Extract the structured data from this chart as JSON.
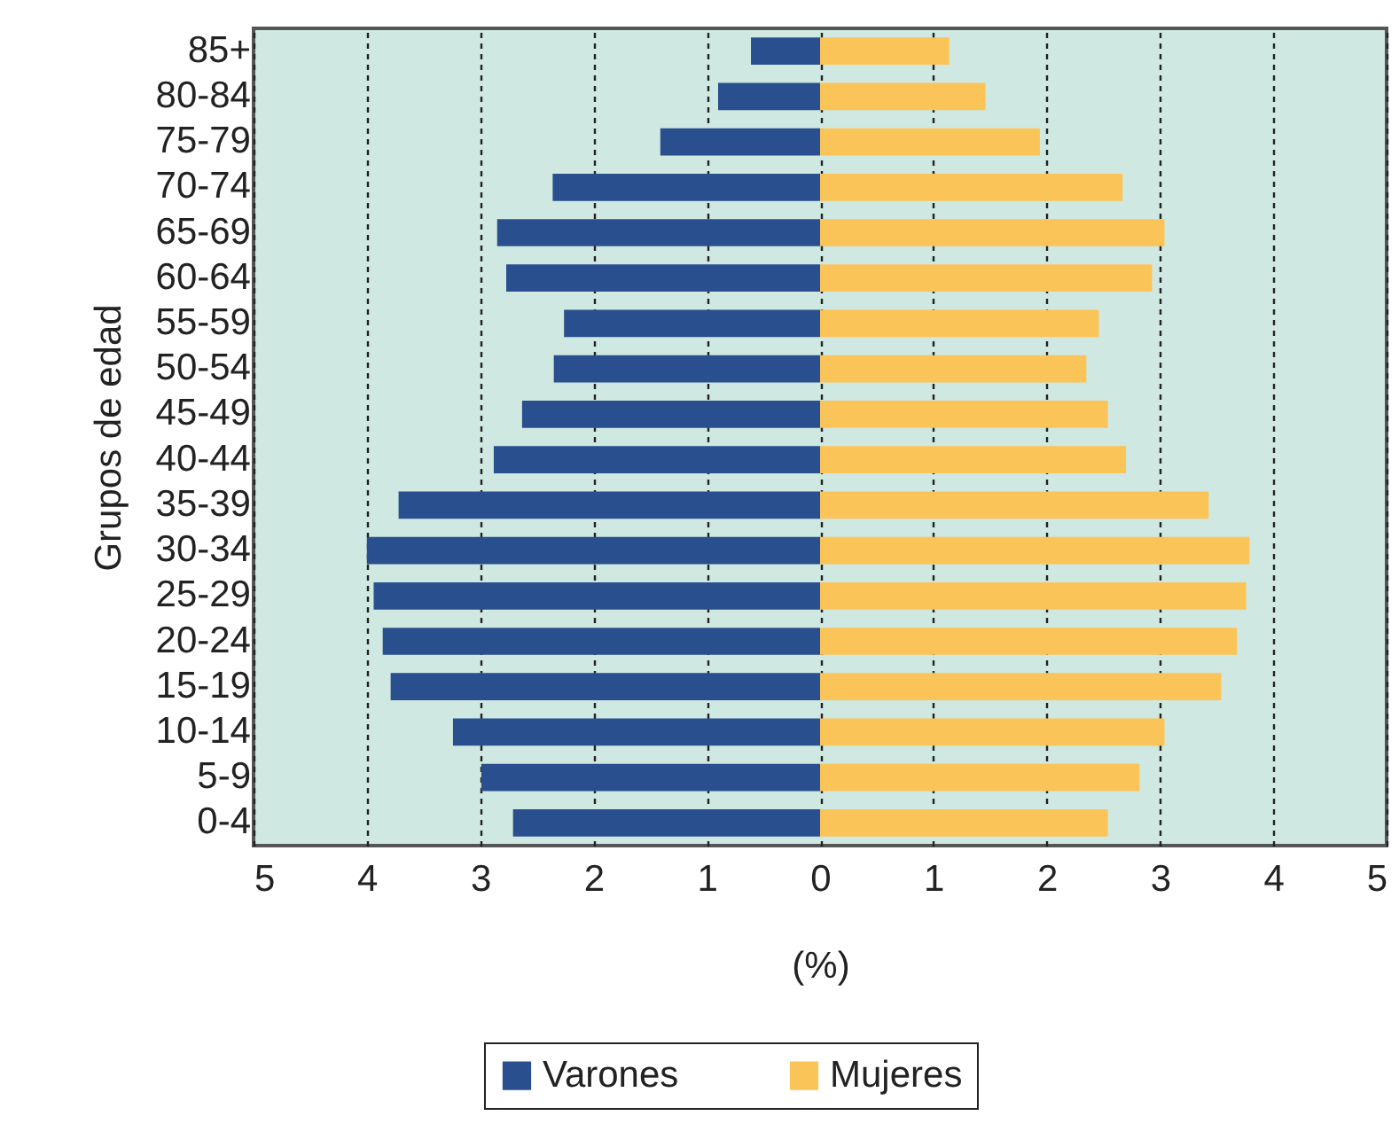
{
  "chart_data": {
    "type": "bar",
    "orientation": "horizontal",
    "ylabel": "Grupos de edad",
    "xlabel": "(%)",
    "categories": [
      "85+",
      "80-84",
      "75-79",
      "70-74",
      "65-69",
      "60-64",
      "55-59",
      "50-54",
      "45-49",
      "40-44",
      "35-39",
      "30-34",
      "25-29",
      "20-24",
      "15-19",
      "10-14",
      "5-9",
      "0-4"
    ],
    "series": [
      {
        "name": "Varones",
        "color": "#2a4f8f",
        "values": [
          -0.61,
          -0.9,
          -1.41,
          -2.36,
          -2.85,
          -2.77,
          -2.26,
          -2.35,
          -2.63,
          -2.88,
          -3.72,
          -4.0,
          -3.94,
          -3.86,
          -3.79,
          -3.24,
          -2.99,
          -2.71
        ]
      },
      {
        "name": "Mujeres",
        "color": "#fbc458",
        "values": [
          1.14,
          1.46,
          1.94,
          2.67,
          3.04,
          2.93,
          2.46,
          2.35,
          2.54,
          2.7,
          3.43,
          3.79,
          3.76,
          3.68,
          3.54,
          3.04,
          2.82,
          2.54
        ]
      }
    ],
    "xlim": [
      -5,
      5
    ],
    "xticks": [
      {
        "value": -5,
        "label": "5"
      },
      {
        "value": -4,
        "label": "4"
      },
      {
        "value": -3,
        "label": "3"
      },
      {
        "value": -2,
        "label": "2"
      },
      {
        "value": -1,
        "label": "1"
      },
      0,
      1,
      2,
      3,
      4,
      5
    ],
    "stacked": true,
    "grid": "x",
    "legend": "bottom"
  }
}
